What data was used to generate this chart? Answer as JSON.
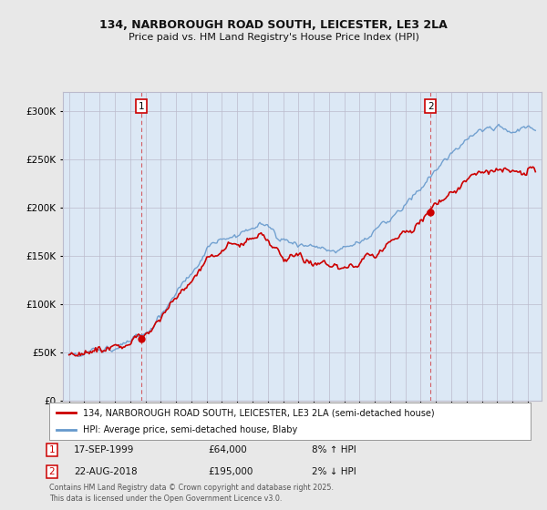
{
  "title_line1": "134, NARBOROUGH ROAD SOUTH, LEICESTER, LE3 2LA",
  "title_line2": "Price paid vs. HM Land Registry's House Price Index (HPI)",
  "legend_label1": "134, NARBOROUGH ROAD SOUTH, LEICESTER, LE3 2LA (semi-detached house)",
  "legend_label2": "HPI: Average price, semi-detached house, Blaby",
  "annotation1_label": "1",
  "annotation1_date": "17-SEP-1999",
  "annotation1_price": "£64,000",
  "annotation1_hpi": "8% ↑ HPI",
  "annotation2_label": "2",
  "annotation2_date": "22-AUG-2018",
  "annotation2_price": "£195,000",
  "annotation2_hpi": "2% ↓ HPI",
  "footnote": "Contains HM Land Registry data © Crown copyright and database right 2025.\nThis data is licensed under the Open Government Licence v3.0.",
  "background_color": "#e8e8e8",
  "plot_background_color": "#dce8f5",
  "red_color": "#cc0000",
  "blue_color": "#6699cc",
  "grid_color": "#bbbbcc",
  "ylim_min": 0,
  "ylim_max": 320000,
  "sale1_year": 1999.72,
  "sale1_price": 64000,
  "sale2_year": 2018.64,
  "sale2_price": 195000
}
